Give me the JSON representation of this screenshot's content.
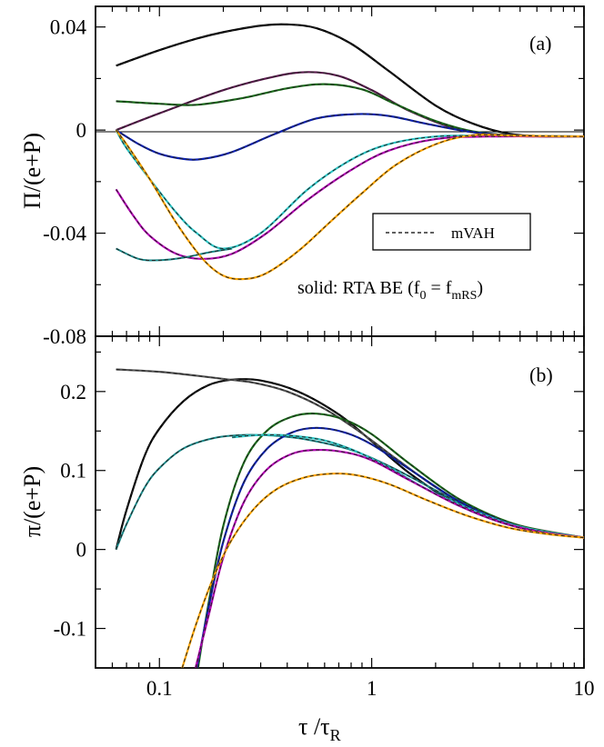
{
  "chart_data": [
    {
      "type": "line",
      "panel_label": "(a)",
      "ylabel": "Π/(e+P)",
      "xlabel": "τ /τR",
      "xscale": "log",
      "xlim": [
        0.05,
        10
      ],
      "ylim": [
        -0.08,
        0.048
      ],
      "xticks": [
        0.1,
        1,
        10
      ],
      "xtick_labels": [
        "0.1",
        "1",
        "10"
      ],
      "yticks": [
        0.04,
        0,
        -0.04,
        -0.08
      ],
      "ytick_labels": [
        "0.04",
        "0",
        "-0.04",
        "-0.08"
      ],
      "legend": {
        "placement": "right",
        "label": "mVAH",
        "style": "dashed"
      },
      "note": "solid: RTA BE (f0 = fmRS)",
      "series": [
        {
          "name": "black",
          "color": "#000000",
          "x": [
            0.0625,
            0.1,
            0.15,
            0.2,
            0.3,
            0.4,
            0.55,
            0.8,
            1.2,
            2,
            3,
            4.5,
            7,
            10
          ],
          "y": [
            0.025,
            0.031,
            0.0355,
            0.038,
            0.0405,
            0.041,
            0.0395,
            0.0335,
            0.023,
            0.0095,
            0.0025,
            -0.0015,
            -0.0025,
            -0.0025
          ]
        },
        {
          "name": "purple",
          "color": "#5c1a4f",
          "x": [
            0.0625,
            0.1,
            0.2,
            0.35,
            0.5,
            0.7,
            1,
            1.5,
            2.5,
            4,
            6,
            10
          ],
          "y": [
            0,
            0.0065,
            0.0155,
            0.0208,
            0.0225,
            0.021,
            0.0155,
            0.0075,
            0.0005,
            -0.002,
            -0.0025,
            -0.0025
          ]
        },
        {
          "name": "green",
          "color": "#1a6e1a",
          "x": [
            0.0625,
            0.1,
            0.15,
            0.25,
            0.4,
            0.6,
            0.9,
            1.3,
            2,
            3,
            5,
            10
          ],
          "y": [
            0.0112,
            0.0102,
            0.0098,
            0.0125,
            0.0162,
            0.0178,
            0.0158,
            0.01,
            0.0035,
            -0.0005,
            -0.0022,
            -0.0025
          ]
        },
        {
          "name": "blue",
          "color": "#0a1fb0",
          "x": [
            0.0625,
            0.08,
            0.1,
            0.13,
            0.16,
            0.22,
            0.35,
            0.55,
            0.85,
            1.2,
            1.8,
            2.8,
            4.5,
            10
          ],
          "y": [
            0,
            -0.0055,
            -0.0092,
            -0.0112,
            -0.0112,
            -0.0085,
            -0.0015,
            0.0045,
            0.0062,
            0.0055,
            0.0025,
            -0.0005,
            -0.002,
            -0.0025
          ]
        },
        {
          "name": "cyan",
          "color": "#2cc6c6",
          "x": [
            0.0625,
            0.07,
            0.09,
            0.12,
            0.15,
            0.2,
            0.3,
            0.5,
            0.8,
            1.2,
            2,
            3.5,
            10
          ],
          "y": [
            0,
            -0.007,
            -0.019,
            -0.032,
            -0.04,
            -0.046,
            -0.04,
            -0.023,
            -0.0115,
            -0.0055,
            -0.0025,
            -0.0022,
            -0.0025
          ]
        },
        {
          "name": "magenta",
          "color": "#b400b4",
          "x": [
            0.0625,
            0.075,
            0.09,
            0.12,
            0.16,
            0.22,
            0.32,
            0.5,
            0.8,
            1.2,
            2,
            3.5,
            10
          ],
          "y": [
            -0.023,
            -0.033,
            -0.041,
            -0.048,
            -0.05,
            -0.048,
            -0.04,
            -0.027,
            -0.0155,
            -0.008,
            -0.0035,
            -0.0025,
            -0.0025
          ]
        },
        {
          "name": "teal-dashed",
          "color": "#1a8a8a",
          "dashed": true,
          "x": [
            0.0625,
            0.08,
            0.1,
            0.13,
            0.17,
            0.22
          ],
          "y": [
            -0.046,
            -0.05,
            -0.0505,
            -0.0495,
            -0.0475,
            -0.046
          ]
        },
        {
          "name": "orange",
          "color": "#ffa500",
          "x": [
            0.0625,
            0.07,
            0.09,
            0.12,
            0.16,
            0.2,
            0.25,
            0.32,
            0.45,
            0.65,
            0.9,
            1.3,
            2,
            3,
            5,
            10
          ],
          "y": [
            0,
            -0.0055,
            -0.019,
            -0.036,
            -0.05,
            -0.0565,
            -0.0578,
            -0.0555,
            -0.047,
            -0.035,
            -0.0245,
            -0.0135,
            -0.0055,
            -0.002,
            -0.0022,
            -0.0025
          ]
        }
      ]
    },
    {
      "type": "line",
      "panel_label": "(b)",
      "ylabel": "π/(e+P)",
      "xlabel": "τ /τR",
      "xscale": "log",
      "xlim": [
        0.05,
        10
      ],
      "ylim": [
        -0.15,
        0.27
      ],
      "xticks": [
        0.1,
        1,
        10
      ],
      "xtick_labels": [
        "0.1",
        "1",
        "10"
      ],
      "yticks": [
        0.2,
        0.1,
        0,
        -0.1
      ],
      "ytick_labels": [
        "0.2",
        "0.1",
        "0",
        "-0.1"
      ],
      "series": [
        {
          "name": "black",
          "color": "#000000",
          "x": [
            0.0625,
            0.07,
            0.085,
            0.1,
            0.13,
            0.17,
            0.22,
            0.3,
            0.45,
            0.7,
            1,
            1.5,
            2.5,
            4,
            6,
            10
          ],
          "y": [
            0,
            0.05,
            0.118,
            0.153,
            0.188,
            0.208,
            0.215,
            0.214,
            0.2,
            0.171,
            0.137,
            0.097,
            0.058,
            0.035,
            0.023,
            0.015
          ]
        },
        {
          "name": "grey-flat",
          "color": "#555555",
          "x": [
            0.0625,
            0.1,
            0.15,
            0.2,
            0.28,
            0.4,
            0.6,
            0.9,
            1.3,
            2,
            3,
            5,
            10
          ],
          "y": [
            0.228,
            0.225,
            0.22,
            0.216,
            0.211,
            0.2,
            0.178,
            0.147,
            0.115,
            0.079,
            0.051,
            0.03,
            0.015
          ]
        },
        {
          "name": "teal-dashed",
          "color": "#1a8a8a",
          "dashed": true,
          "x": [
            0.0625,
            0.07,
            0.085,
            0.1,
            0.13,
            0.18,
            0.25,
            0.35,
            0.5,
            0.8,
            1.2,
            2,
            3,
            5,
            10
          ],
          "y": [
            0,
            0.032,
            0.078,
            0.103,
            0.128,
            0.141,
            0.145,
            0.144,
            0.139,
            0.126,
            0.106,
            0.075,
            0.05,
            0.029,
            0.015
          ]
        },
        {
          "name": "green",
          "color": "#1a6e1a",
          "x": [
            0.152,
            0.17,
            0.2,
            0.25,
            0.32,
            0.42,
            0.55,
            0.75,
            1,
            1.5,
            2.5,
            4,
            6,
            10
          ],
          "y": [
            -0.15,
            -0.07,
            0.03,
            0.11,
            0.15,
            0.168,
            0.172,
            0.164,
            0.146,
            0.109,
            0.066,
            0.039,
            0.025,
            0.015
          ]
        },
        {
          "name": "blue",
          "color": "#0a1fb0",
          "x": [
            0.15,
            0.17,
            0.2,
            0.25,
            0.32,
            0.42,
            0.55,
            0.75,
            1,
            1.5,
            2.5,
            4,
            6,
            10
          ],
          "y": [
            -0.15,
            -0.075,
            0.01,
            0.085,
            0.127,
            0.148,
            0.154,
            0.148,
            0.133,
            0.102,
            0.063,
            0.037,
            0.024,
            0.015
          ]
        },
        {
          "name": "cyan",
          "color": "#2cc6c6",
          "x": [
            0.22,
            0.3,
            0.42,
            0.6,
            0.85,
            1.2,
            1.8,
            2.8,
            4.5,
            7,
            10
          ],
          "y": [
            0.142,
            0.145,
            0.144,
            0.138,
            0.124,
            0.104,
            0.077,
            0.053,
            0.032,
            0.021,
            0.015
          ]
        },
        {
          "name": "magenta",
          "color": "#b400b4",
          "x": [
            0.148,
            0.17,
            0.2,
            0.25,
            0.32,
            0.42,
            0.55,
            0.75,
            1,
            1.5,
            2.5,
            4,
            6,
            10
          ],
          "y": [
            -0.15,
            -0.085,
            -0.01,
            0.06,
            0.101,
            0.121,
            0.126,
            0.123,
            0.113,
            0.088,
            0.057,
            0.035,
            0.023,
            0.015
          ]
        },
        {
          "name": "orange",
          "color": "#ffa500",
          "x": [
            0.128,
            0.15,
            0.18,
            0.22,
            0.28,
            0.36,
            0.48,
            0.65,
            0.85,
            1.2,
            1.8,
            2.8,
            4.5,
            7,
            10
          ],
          "y": [
            -0.15,
            -0.092,
            -0.035,
            0.013,
            0.052,
            0.077,
            0.091,
            0.096,
            0.094,
            0.083,
            0.063,
            0.043,
            0.027,
            0.019,
            0.015
          ]
        }
      ]
    }
  ]
}
